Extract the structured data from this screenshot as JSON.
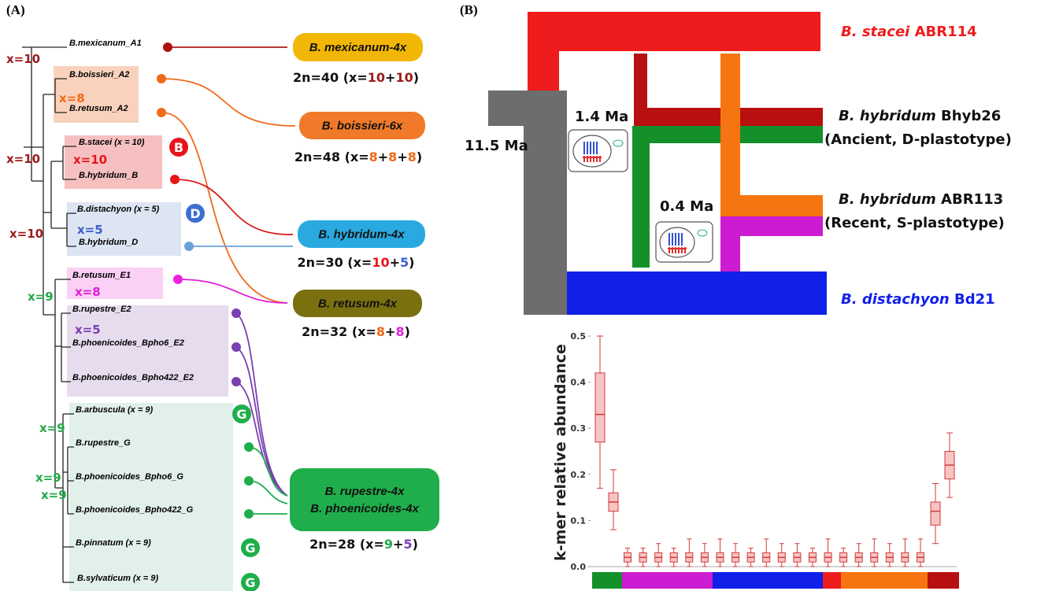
{
  "panel_a": {
    "label": "(A)",
    "taxa": [
      "B.mexicanum_A1",
      "B.boissieri_A2",
      "B.retusum_A2",
      "B.stacei (x = 10)",
      "B.hybridum_B",
      "B.distachyon (x = 5)",
      "B.hybridum_D",
      "B.retusum_E1",
      "B.rupestre_E2",
      "B.phoenicoides_Bpho6_E2",
      "B.phoenicoides_Bpho422_E2",
      "B.arbuscula (x = 9)",
      "B.rupestre_G",
      "B.phoenicoides_Bpho6_G",
      "B.phoenicoides_Bpho422_G",
      "B.pinnatum (x = 9)",
      "B.sylvaticum (x = 9)"
    ],
    "base_numbers": [
      {
        "text": "x=10",
        "color": "#9b1c1c"
      },
      {
        "text": "x=8",
        "color": "#f06a1a"
      },
      {
        "text": "x=10",
        "color": "#9b1c1c"
      },
      {
        "text": "x=10",
        "color": "#e8141b"
      },
      {
        "text": "x=10",
        "color": "#9b1c1c"
      },
      {
        "text": "x=5",
        "color": "#3a5fcd"
      },
      {
        "text": "x=9",
        "color": "#22a845"
      },
      {
        "text": "x=8",
        "color": "#e020d8"
      },
      {
        "text": "x=5",
        "color": "#7a3fb0"
      },
      {
        "text": "x=9",
        "color": "#22a845"
      },
      {
        "text": "x=9",
        "color": "#22a845"
      },
      {
        "text": "x=9",
        "color": "#22a845"
      }
    ],
    "badges": [
      {
        "text": "B",
        "color": "#e8141b"
      },
      {
        "text": "D",
        "color": "#3a6fd0"
      },
      {
        "text": "G",
        "color": "#1fae4b"
      },
      {
        "text": "G",
        "color": "#1fae4b"
      },
      {
        "text": "G",
        "color": "#1fae4b"
      }
    ],
    "hybrids": [
      {
        "name": [
          "B. mexicanum-4x"
        ],
        "color": "#f2b705",
        "formula": [
          {
            "text": "2n=40 (x=",
            "color": "#111"
          },
          {
            "text": "10",
            "color": "#9b1c1c"
          },
          {
            "text": "+",
            "color": "#111"
          },
          {
            "text": "10",
            "color": "#9b1c1c"
          },
          {
            "text": ")",
            "color": "#111"
          }
        ]
      },
      {
        "name": [
          "B. boissieri-6x"
        ],
        "color": "#f07a2a",
        "formula": [
          {
            "text": "2n=48 (x=",
            "color": "#111"
          },
          {
            "text": "8",
            "color": "#f06a1a"
          },
          {
            "text": "+",
            "color": "#111"
          },
          {
            "text": "8",
            "color": "#f06a1a"
          },
          {
            "text": "+",
            "color": "#111"
          },
          {
            "text": "8",
            "color": "#f06a1a"
          },
          {
            "text": ")",
            "color": "#111"
          }
        ]
      },
      {
        "name": [
          "B. hybridum-4x"
        ],
        "color": "#29a9e0",
        "formula": [
          {
            "text": "2n=30 (x=",
            "color": "#111"
          },
          {
            "text": "10",
            "color": "#e8141b"
          },
          {
            "text": "+",
            "color": "#111"
          },
          {
            "text": "5",
            "color": "#3a5fcd"
          },
          {
            "text": ")",
            "color": "#111"
          }
        ]
      },
      {
        "name": [
          "B. retusum-4x"
        ],
        "color": "#7a7010",
        "formula": [
          {
            "text": "2n=32 (x=",
            "color": "#111"
          },
          {
            "text": "8",
            "color": "#f06a1a"
          },
          {
            "text": "+",
            "color": "#111"
          },
          {
            "text": "8",
            "color": "#e020d8"
          },
          {
            "text": ")",
            "color": "#111"
          }
        ]
      },
      {
        "name": [
          "B. rupestre-4x",
          "B. phoenicoides-4x"
        ],
        "color": "#1fae4b",
        "formula": [
          {
            "text": "2n=28 (x=",
            "color": "#111"
          },
          {
            "text": "9",
            "color": "#22a845"
          },
          {
            "text": "+",
            "color": "#111"
          },
          {
            "text": "5",
            "color": "#7a3fb0"
          },
          {
            "text": ")",
            "color": "#111"
          }
        ]
      }
    ]
  },
  "panel_b": {
    "label": "(B)",
    "lineages": [
      {
        "name": "B. stacei",
        "accession": "ABR114",
        "color": "#ee1c1c"
      },
      {
        "name": "B. hybridum",
        "accession": "Bhyb26",
        "note": "(Ancient, D-plastotype)",
        "color": "#111"
      },
      {
        "name": "B. hybridum",
        "accession": "ABR113",
        "note": "(Recent, S-plastotype)",
        "color": "#111"
      },
      {
        "name": "B. distachyon",
        "accession": "Bd21",
        "color": "#1020e8"
      }
    ],
    "times": [
      "11.5 Ma",
      "1.4 Ma",
      "0.4 Ma"
    ]
  },
  "chart_data": {
    "type": "box",
    "y_label": "k-mer relative abundance",
    "ylim": [
      0,
      0.5
    ],
    "yticks": [
      {
        "value": 0,
        "label": "0.0"
      },
      0.1,
      0.2,
      0.3,
      0.4,
      0.5
    ],
    "color": "#d23a3a",
    "low": [
      0.17,
      0.08,
      0.0,
      0.0,
      0.0,
      0.0,
      0.0,
      0.0,
      0.0,
      0.0,
      0.0,
      0.0,
      0.0,
      0.0,
      0.0,
      0.0,
      0.0,
      0.0,
      0.0,
      0.0,
      0.0,
      0.0,
      0.05,
      0.15
    ],
    "q1": [
      0.27,
      0.12,
      0.01,
      0.01,
      0.01,
      0.01,
      0.01,
      0.01,
      0.01,
      0.01,
      0.01,
      0.01,
      0.01,
      0.01,
      0.01,
      0.01,
      0.01,
      0.01,
      0.01,
      0.01,
      0.01,
      0.01,
      0.09,
      0.19
    ],
    "median": [
      0.33,
      0.14,
      0.02,
      0.02,
      0.02,
      0.02,
      0.02,
      0.02,
      0.02,
      0.02,
      0.02,
      0.02,
      0.02,
      0.02,
      0.02,
      0.02,
      0.02,
      0.02,
      0.02,
      0.02,
      0.02,
      0.02,
      0.12,
      0.22
    ],
    "q3": [
      0.42,
      0.16,
      0.03,
      0.03,
      0.03,
      0.03,
      0.03,
      0.03,
      0.03,
      0.03,
      0.03,
      0.03,
      0.03,
      0.03,
      0.03,
      0.03,
      0.03,
      0.03,
      0.03,
      0.03,
      0.03,
      0.03,
      0.14,
      0.25
    ],
    "high": [
      0.5,
      0.21,
      0.04,
      0.04,
      0.05,
      0.04,
      0.06,
      0.05,
      0.06,
      0.05,
      0.04,
      0.06,
      0.05,
      0.05,
      0.04,
      0.06,
      0.04,
      0.05,
      0.06,
      0.05,
      0.06,
      0.06,
      0.18,
      0.29
    ]
  }
}
